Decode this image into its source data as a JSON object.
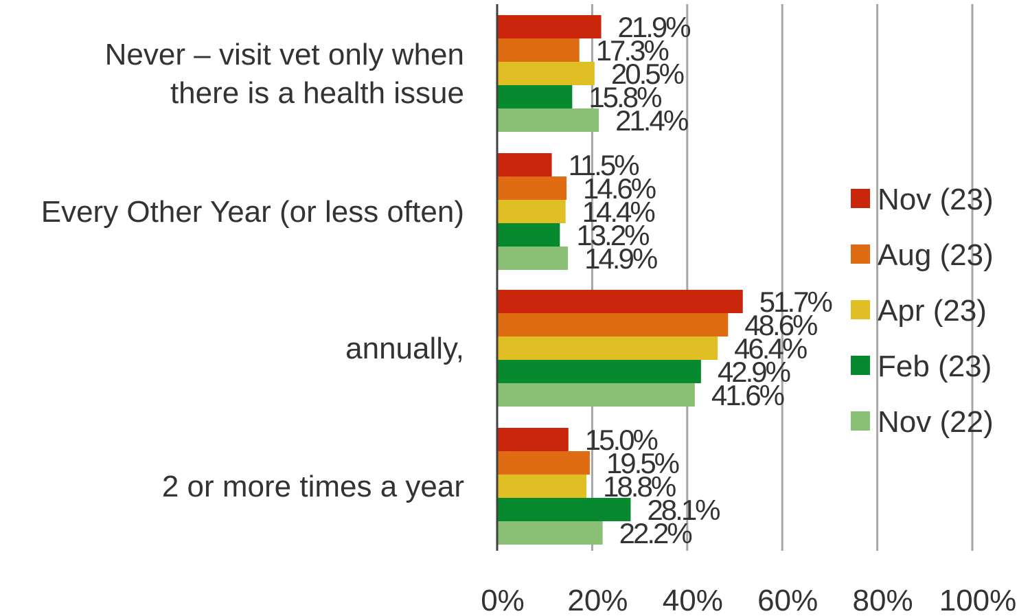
{
  "chart_data": {
    "type": "bar",
    "orientation": "horizontal",
    "categories": [
      [
        "Never – visit vet only when",
        "there is a health issue"
      ],
      [
        "Every Other Year (or less often)"
      ],
      [
        "annually,"
      ],
      [
        "2 or more times a year"
      ]
    ],
    "series": [
      {
        "name": "Nov (23)",
        "color": "#c9260c",
        "values": [
          21.9,
          11.5,
          51.7,
          15.0
        ],
        "labels": [
          "21.9%",
          "11.5%",
          "51.7%",
          "15.0%"
        ]
      },
      {
        "name": "Aug (23)",
        "color": "#df6b12",
        "values": [
          17.3,
          14.6,
          48.6,
          19.5
        ],
        "labels": [
          "17.3%",
          "14.6%",
          "48.6%",
          "19.5%"
        ]
      },
      {
        "name": "Apr (23)",
        "color": "#dfbf24",
        "values": [
          20.5,
          14.4,
          46.4,
          18.8
        ],
        "labels": [
          "20.5%",
          "14.4%",
          "46.4%",
          "18.8%"
        ]
      },
      {
        "name": "Feb (23)",
        "color": "#078a2f",
        "values": [
          15.8,
          13.2,
          42.9,
          28.1
        ],
        "labels": [
          "15.8%",
          "13.2%",
          "42.9%",
          "28.1%"
        ]
      },
      {
        "name": "Nov (22)",
        "color": "#8abf76",
        "values": [
          21.4,
          14.9,
          41.6,
          22.2
        ],
        "labels": [
          "21.4%",
          "14.9%",
          "41.6%",
          "22.2%"
        ]
      }
    ],
    "xlim": [
      0,
      100
    ],
    "xticks": [
      0,
      20,
      40,
      60,
      80,
      100
    ],
    "xtick_labels": [
      "0%",
      "20%",
      "40%",
      "60%",
      "80%",
      "100%"
    ],
    "grid": true,
    "legend_position": "right"
  }
}
